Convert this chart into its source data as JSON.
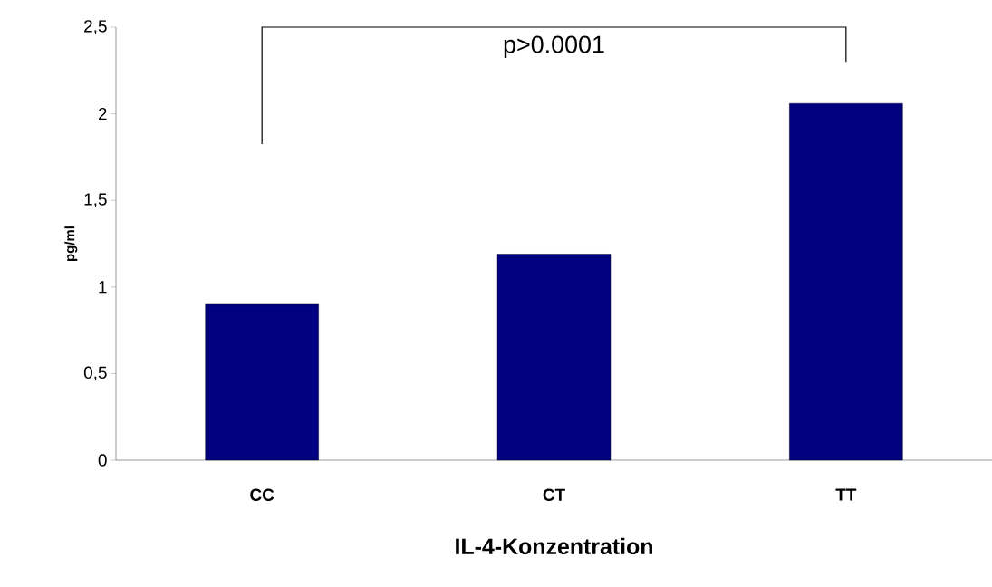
{
  "chart_data": {
    "type": "bar",
    "xlabel": "IL-4-Konzentration",
    "ylabel": "pg/ml",
    "categories": [
      "CC",
      "CT",
      "TT"
    ],
    "values": [
      0.9,
      1.19,
      2.06
    ],
    "color": "#000080",
    "ylim": [
      0,
      2.5
    ],
    "yticks": [
      0,
      {
        "value": 0.5,
        "label": "0,5"
      },
      1,
      {
        "value": 1.5,
        "label": "1,5"
      },
      2,
      {
        "value": 2.5,
        "label": "2,5"
      }
    ],
    "annotations": [
      "p>0.0001"
    ]
  }
}
